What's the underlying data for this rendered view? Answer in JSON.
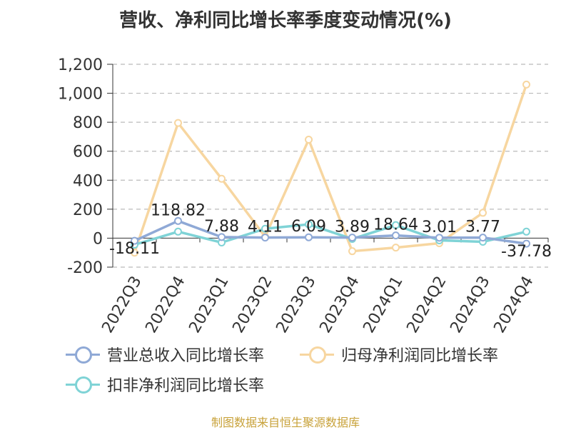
{
  "colors": {
    "series": [
      "#8fa9d6",
      "#f7d6a0",
      "#7fd3d6"
    ],
    "axis": "#333333",
    "grid": "#bbbbbb",
    "source": "#c8a23a"
  },
  "source": "制图数据来自恒生聚源数据库",
  "chart_data": {
    "type": "line",
    "title": "营收、净利同比增长率季度变动情况(%)",
    "xlabel": "",
    "ylabel": "",
    "ylim": [
      -200,
      1200
    ],
    "yticks": [
      -200,
      0,
      200,
      400,
      600,
      800,
      1000,
      1200
    ],
    "ytick_labels": [
      "-200",
      "0",
      "200",
      "400",
      "600",
      "800",
      "1,000",
      "1,200"
    ],
    "grid": true,
    "legend_position": "bottom",
    "categories": [
      "2022Q3",
      "2022Q4",
      "2023Q1",
      "2023Q2",
      "2023Q3",
      "2023Q4",
      "2024Q1",
      "2024Q2",
      "2024Q3",
      "2024Q4"
    ],
    "series": [
      {
        "name": "营业总收入同比增长率",
        "values": [
          -18.11,
          118.82,
          7.88,
          4.11,
          6.09,
          3.89,
          18.64,
          3.01,
          3.77,
          -37.78
        ],
        "labels": [
          "-18.11",
          "118.82",
          "7.88",
          "4.11",
          "6.09",
          "3.89",
          "18.64",
          "3.01",
          "3.77",
          "-37.78"
        ]
      },
      {
        "name": "归母净利润同比增长率",
        "values": [
          -100,
          795,
          410,
          10,
          680,
          -90,
          -65,
          -35,
          175,
          1060
        ]
      },
      {
        "name": "扣非净利润同比增长率",
        "values": [
          -45,
          45,
          -30,
          65,
          95,
          -5,
          90,
          -15,
          -25,
          45
        ]
      }
    ]
  }
}
